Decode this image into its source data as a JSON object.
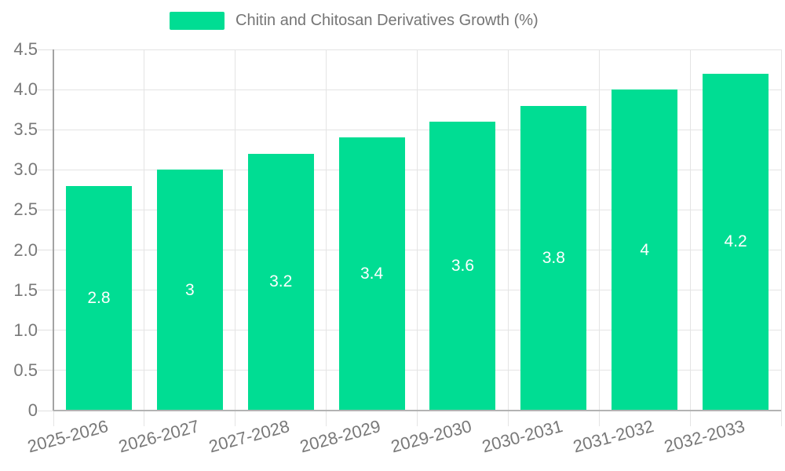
{
  "chart_data": {
    "type": "bar",
    "title": "Chitin and Chitosan Derivatives Growth (%)",
    "categories": [
      "2025-2026",
      "2026-2027",
      "2027-2028",
      "2028-2029",
      "2029-2030",
      "2030-2031",
      "2031-2032",
      "2032-2033"
    ],
    "values": [
      2.8,
      3,
      3.2,
      3.4,
      3.6,
      3.8,
      4,
      4.2
    ],
    "value_labels": [
      "2.8",
      "3",
      "3.2",
      "3.4",
      "3.6",
      "3.8",
      "4",
      "4.2"
    ],
    "xlabel": "",
    "ylabel": "",
    "ylim": [
      0,
      4.5
    ],
    "y_tick_labels": [
      "0",
      "0.5",
      "1.0",
      "1.5",
      "2.0",
      "2.5",
      "3.0",
      "3.5",
      "4.0",
      "4.5"
    ],
    "y_tick_values": [
      0,
      0.5,
      1.0,
      1.5,
      2.0,
      2.5,
      3.0,
      3.5,
      4.0,
      4.5
    ],
    "grid": true,
    "legend_position": "top",
    "x_label_rotation_deg": -15,
    "colors": {
      "bar": "#00dd93",
      "bar_value_label": "#ffffff",
      "axis_text": "#787878",
      "legend_text": "#757575",
      "gridline": "#e4e4e4",
      "y_axis_line": "#a3a3a3",
      "x_axis_line": "#b3b3b3",
      "background": "#ffffff"
    }
  }
}
